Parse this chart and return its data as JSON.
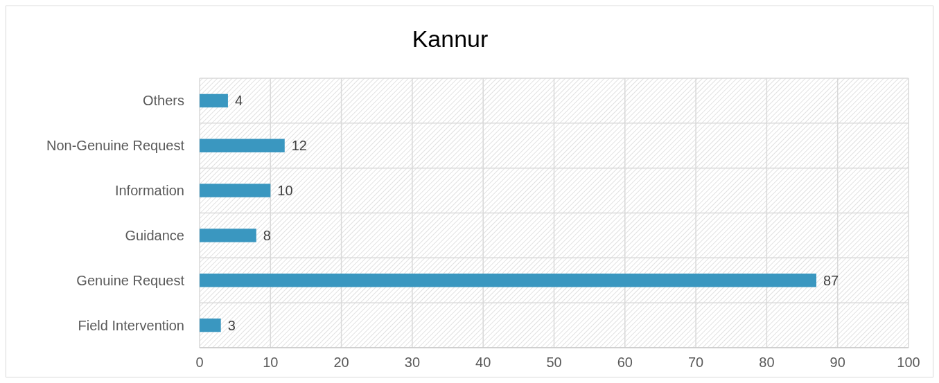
{
  "chart_data": {
    "type": "bar",
    "title": "Kannur",
    "orientation": "horizontal",
    "categories": [
      "Others",
      "Non-Genuine Request",
      "Information",
      "Guidance",
      "Genuine Request",
      "Field Intervention"
    ],
    "values": [
      4,
      12,
      10,
      8,
      87,
      3
    ],
    "color": "#3a97c0",
    "xlim": [
      0,
      100
    ],
    "xticks": [
      0,
      10,
      20,
      30,
      40,
      50,
      60,
      70,
      80,
      90,
      100
    ],
    "grid": true,
    "data_labels": true
  }
}
